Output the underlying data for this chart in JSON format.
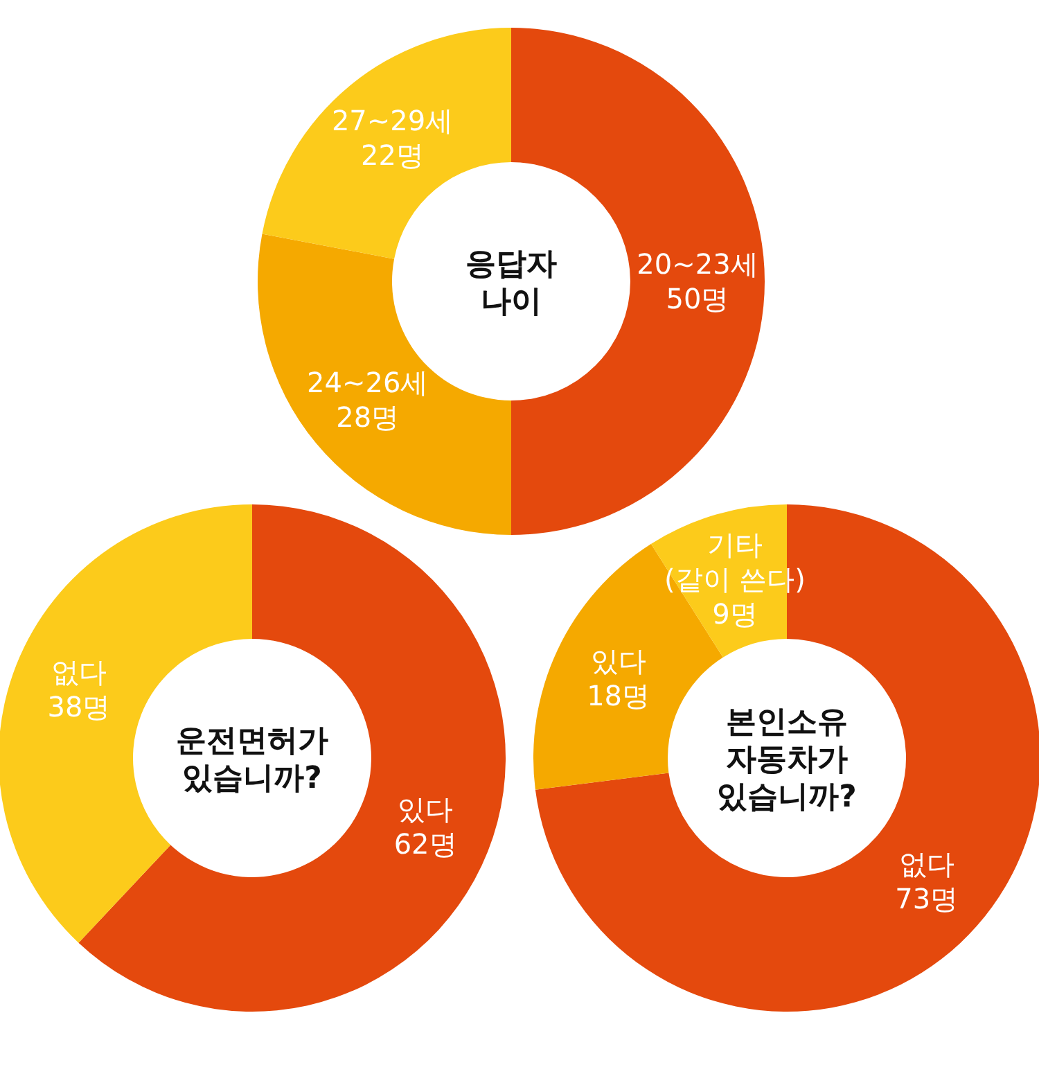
{
  "chart_data": [
    {
      "type": "donut",
      "title": "응답자 나이",
      "categories": [
        "20~23세",
        "24~26세",
        "27~29세"
      ],
      "values": [
        50,
        28,
        22
      ],
      "colors": [
        "#e4490d",
        "#f5a900",
        "#fccb1b"
      ],
      "value_labels": [
        "50명",
        "28명",
        "22명"
      ]
    },
    {
      "type": "donut",
      "title": "운전면허가 있습니까?",
      "categories": [
        "있다",
        "없다"
      ],
      "values": [
        62,
        38
      ],
      "colors": [
        "#e4490d",
        "#fccb1b"
      ],
      "value_labels": [
        "62명",
        "38명"
      ]
    },
    {
      "type": "donut",
      "title": "본인소유 자동차가 있습니까?",
      "categories": [
        "없다",
        "있다",
        "기타 (같이 쓴다)"
      ],
      "values": [
        73,
        18,
        9
      ],
      "colors": [
        "#e4490d",
        "#f5a900",
        "#fccb1b"
      ],
      "value_labels": [
        "73명",
        "18명",
        "9명"
      ]
    }
  ]
}
